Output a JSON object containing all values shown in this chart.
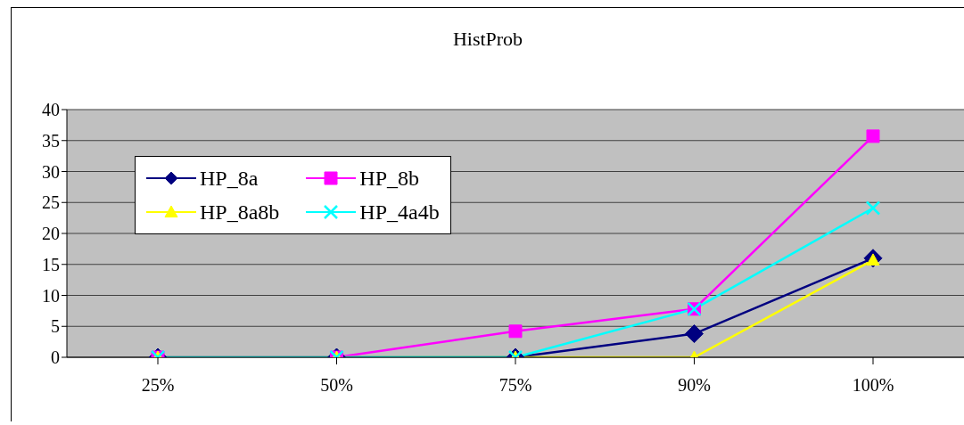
{
  "chart_data": {
    "type": "line",
    "title": "HistProb",
    "categories": [
      "25%",
      "50%",
      "75%",
      "90%",
      "100%"
    ],
    "series": [
      {
        "name": "HP_8a",
        "color": "#000080",
        "marker": "diamond",
        "values": [
          0,
          0,
          0,
          3.8,
          16.0
        ]
      },
      {
        "name": "HP_8b",
        "color": "#ff00ff",
        "marker": "square",
        "values": [
          0,
          0,
          4.2,
          7.8,
          35.7
        ]
      },
      {
        "name": "HP_8a8b",
        "color": "#ffff00",
        "marker": "triangle",
        "values": [
          0,
          0,
          0,
          0,
          15.7
        ]
      },
      {
        "name": "HP_4a4b",
        "color": "#00ffff",
        "marker": "cross",
        "values": [
          0,
          0,
          0,
          7.8,
          24.1
        ]
      }
    ],
    "ylim": [
      0,
      40
    ],
    "yticks": [
      0,
      5,
      10,
      15,
      20,
      25,
      30,
      35,
      40
    ],
    "grid": "y",
    "legend": "top left"
  }
}
